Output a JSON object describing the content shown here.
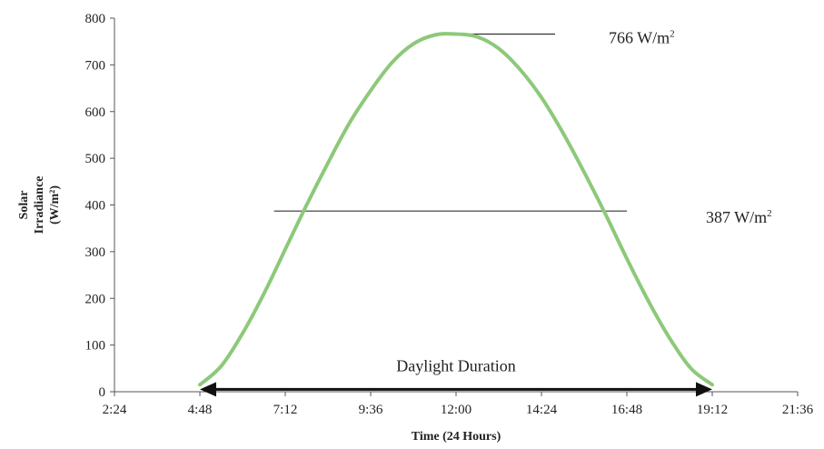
{
  "chart_data": {
    "type": "line",
    "title": "",
    "xlabel": "Time (24 Hours)",
    "ylabel_lines": [
      "Solar",
      "Irradiance",
      "(W/m²)"
    ],
    "xlim_hours": [
      2.4,
      21.6
    ],
    "ylim": [
      0,
      800
    ],
    "x_ticks": [
      "2:24",
      "4:48",
      "7:12",
      "9:36",
      "12:00",
      "14:24",
      "16:48",
      "19:12",
      "21:36"
    ],
    "y_ticks": [
      "0",
      "100",
      "200",
      "300",
      "400",
      "500",
      "600",
      "700",
      "800"
    ],
    "series": [
      {
        "x": [
          "4:48",
          "5:24",
          "6:00",
          "6:36",
          "7:12",
          "7:48",
          "8:24",
          "9:00",
          "9:36",
          "10:12",
          "10:48",
          "11:24",
          "12:00",
          "12:36",
          "13:12",
          "13:48",
          "14:24",
          "15:00",
          "15:36",
          "16:12",
          "16:48",
          "17:24",
          "18:00",
          "18:36",
          "19:12"
        ],
        "y": [
          15,
          55,
          125,
          210,
          305,
          400,
          490,
          575,
          645,
          705,
          745,
          764,
          766,
          760,
          735,
          690,
          630,
          555,
          470,
          380,
          285,
          195,
          115,
          50,
          15
        ],
        "color": "#8cc97a"
      }
    ],
    "reference_lines": [
      {
        "y": 766,
        "x_start": "11:59",
        "x_end": "14:47",
        "label_text": "766 W/m",
        "label_sup": "2"
      },
      {
        "y": 387,
        "x_start": "6:53",
        "x_end": "16:48",
        "label_text": "387 W/m",
        "label_sup": "2"
      }
    ],
    "annotation": {
      "text": "Daylight Duration",
      "x_start": "4:48",
      "x_end": "19:12",
      "y": 5
    },
    "grid": false,
    "legend": "none"
  }
}
